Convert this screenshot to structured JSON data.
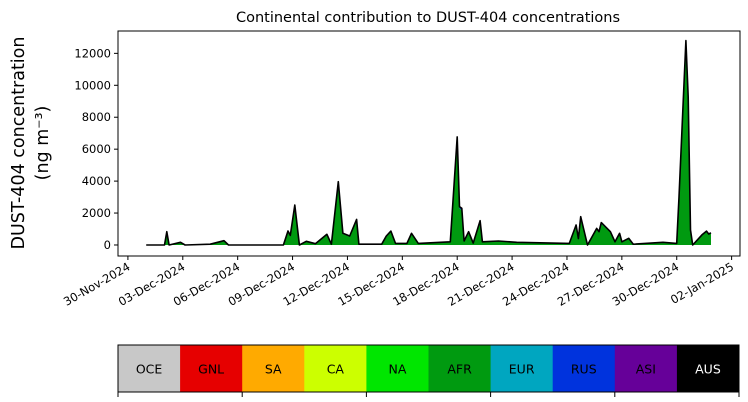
{
  "chart_data": {
    "type": "area",
    "stacked": true,
    "title": "Continental contribution to DUST-404 concentrations",
    "ylabel_line1": "DUST-404 concentration",
    "ylabel_line2": "(ng m⁻³)",
    "xlabel": "",
    "ylim": [
      -690,
      13400
    ],
    "xlim": [
      "2024-11-29T11:00",
      "2025-01-02T11:00"
    ],
    "yticks": [
      0,
      2000,
      4000,
      6000,
      8000,
      10000,
      12000
    ],
    "ytick_labels": [
      "0",
      "2000",
      "4000",
      "6000",
      "8000",
      "10000",
      "12000"
    ],
    "xticks": [
      "2024-11-30",
      "2024-12-03",
      "2024-12-06",
      "2024-12-09",
      "2024-12-12",
      "2024-12-15",
      "2024-12-18",
      "2024-12-21",
      "2024-12-24",
      "2024-12-27",
      "2024-12-30",
      "2025-01-02"
    ],
    "xtick_labels": [
      "30-Nov-2024",
      "03-Dec-2024",
      "06-Dec-2024",
      "09-Dec-2024",
      "12-Dec-2024",
      "15-Dec-2024",
      "18-Dec-2024",
      "21-Dec-2024",
      "24-Dec-2024",
      "27-Dec-2024",
      "30-Dec-2024",
      "02-Jan-2025"
    ],
    "grid": false,
    "x": [
      "2024-12-01T00:00",
      "2024-12-02T00:00",
      "2024-12-02T03:00",
      "2024-12-02T06:00",
      "2024-12-02T21:00",
      "2024-12-03T03:00",
      "2024-12-04T12:00",
      "2024-12-05T06:00",
      "2024-12-05T12:00",
      "2024-12-08T12:00",
      "2024-12-08T18:00",
      "2024-12-08T21:00",
      "2024-12-09T03:00",
      "2024-12-09T09:00",
      "2024-12-09T18:00",
      "2024-12-10T06:00",
      "2024-12-10T21:00",
      "2024-12-11T03:00",
      "2024-12-11T12:00",
      "2024-12-11T18:00",
      "2024-12-12T03:00",
      "2024-12-12T12:00",
      "2024-12-12T15:00",
      "2024-12-13T21:00",
      "2024-12-14T03:00",
      "2024-12-14T09:00",
      "2024-12-14T15:00",
      "2024-12-15T06:00",
      "2024-12-15T12:00",
      "2024-12-15T21:00",
      "2024-12-17T15:00",
      "2024-12-18T00:00",
      "2024-12-18T03:00",
      "2024-12-18T06:00",
      "2024-12-18T09:00",
      "2024-12-18T15:00",
      "2024-12-18T21:00",
      "2024-12-19T06:00",
      "2024-12-19T09:00",
      "2024-12-20T06:00",
      "2024-12-21T06:00",
      "2024-12-24T03:00",
      "2024-12-24T12:00",
      "2024-12-24T15:00",
      "2024-12-24T18:00",
      "2024-12-25T03:00",
      "2024-12-25T15:00",
      "2024-12-25T18:00",
      "2024-12-25T21:00",
      "2024-12-26T09:00",
      "2024-12-26T15:00",
      "2024-12-26T21:00",
      "2024-12-27T00:00",
      "2024-12-27T09:00",
      "2024-12-27T15:00",
      "2024-12-29T06:00",
      "2024-12-30T00:00",
      "2024-12-30T03:00",
      "2024-12-30T12:00",
      "2024-12-30T15:00",
      "2024-12-30T18:00",
      "2024-12-30T21:00",
      "2024-12-31T09:00",
      "2024-12-31T15:00",
      "2024-12-31T18:00",
      "2024-12-31T21:00"
    ],
    "series": [
      {
        "name": "AFR",
        "color": "#009a10",
        "values": [
          0,
          0,
          790,
          0,
          160,
          0,
          50,
          260,
          0,
          0,
          830,
          570,
          2380,
          0,
          220,
          80,
          640,
          50,
          3760,
          690,
          530,
          1520,
          50,
          50,
          530,
          830,
          100,
          100,
          690,
          100,
          190,
          6430,
          2280,
          2190,
          240,
          790,
          110,
          1440,
          190,
          240,
          160,
          100,
          1190,
          380,
          1680,
          0,
          990,
          790,
          1330,
          790,
          190,
          690,
          190,
          400,
          50,
          160,
          100,
          2850,
          12160,
          8810,
          890,
          0,
          600,
          830,
          660,
          720
        ]
      },
      {
        "name": "RUS",
        "color": "#0033dd",
        "values": [
          0,
          0,
          40,
          0,
          10,
          0,
          0,
          10,
          0,
          0,
          45,
          30,
          120,
          0,
          10,
          0,
          30,
          0,
          200,
          40,
          30,
          80,
          0,
          0,
          30,
          40,
          0,
          0,
          40,
          0,
          10,
          340,
          120,
          110,
          10,
          40,
          10,
          80,
          10,
          10,
          10,
          0,
          60,
          20,
          90,
          0,
          50,
          40,
          70,
          40,
          10,
          40,
          10,
          20,
          0,
          10,
          0,
          150,
          640,
          460,
          50,
          0,
          30,
          40,
          30,
          40
        ]
      }
    ],
    "total_line_color": "#000000",
    "colorbar": [
      {
        "label": "OCE",
        "color": "#c8c8c8",
        "text_color": "#000000"
      },
      {
        "label": "GNL",
        "color": "#e60000",
        "text_color": "#000000"
      },
      {
        "label": "SA",
        "color": "#ffaa00",
        "text_color": "#000000"
      },
      {
        "label": "CA",
        "color": "#ccff00",
        "text_color": "#000000"
      },
      {
        "label": "NA",
        "color": "#00e600",
        "text_color": "#000000"
      },
      {
        "label": "AFR",
        "color": "#009a10",
        "text_color": "#000000"
      },
      {
        "label": "EUR",
        "color": "#00a6c0",
        "text_color": "#000000"
      },
      {
        "label": "RUS",
        "color": "#0033dd",
        "text_color": "#000000"
      },
      {
        "label": "ASI",
        "color": "#660099",
        "text_color": "#000000"
      },
      {
        "label": "AUS",
        "color": "#000000",
        "text_color": "#ffffff"
      }
    ]
  }
}
